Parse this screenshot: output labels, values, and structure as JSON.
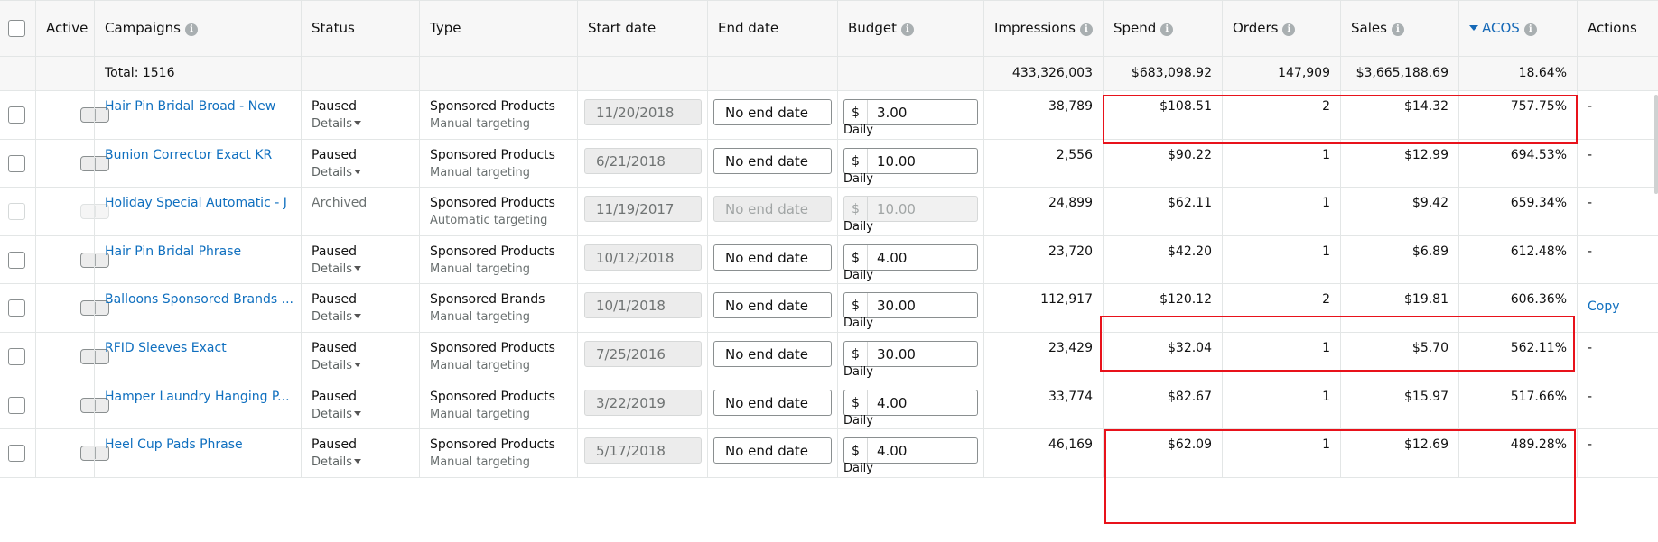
{
  "header": {
    "active": "Active",
    "campaigns": "Campaigns",
    "status": "Status",
    "type": "Type",
    "start_date": "Start date",
    "end_date": "End date",
    "budget": "Budget",
    "impressions": "Impressions",
    "spend": "Spend",
    "orders": "Orders",
    "sales": "Sales",
    "acos": "ACOS",
    "actions": "Actions",
    "info_glyph": "i"
  },
  "total": {
    "label": "Total: 1516",
    "impressions": "433,326,003",
    "spend": "$683,098.92",
    "orders": "147,909",
    "sales": "$3,665,188.69",
    "acos": "18.64%"
  },
  "rows": [
    {
      "name": "Hair Pin Bridal Broad - New",
      "status": "Paused",
      "details": "Details",
      "type": "Sponsored Products",
      "targeting": "Manual targeting",
      "start": "11/20/2018",
      "end": "No end date",
      "currency": "$",
      "budget": "3.00",
      "budget_period": "Daily",
      "impressions": "38,789",
      "spend": "$108.51",
      "orders": "2",
      "sales": "$14.32",
      "acos": "757.75%",
      "action": "-"
    },
    {
      "name": "Bunion Corrector Exact KR",
      "status": "Paused",
      "details": "Details",
      "type": "Sponsored Products",
      "targeting": "Manual targeting",
      "start": "6/21/2018",
      "end": "No end date",
      "currency": "$",
      "budget": "10.00",
      "budget_period": "Daily",
      "impressions": "2,556",
      "spend": "$90.22",
      "orders": "1",
      "sales": "$12.99",
      "acos": "694.53%",
      "action": "-"
    },
    {
      "name": "Holiday Special Automatic - J",
      "status": "Archived",
      "details": "",
      "type": "Sponsored Products",
      "targeting": "Automatic targeting",
      "start": "11/19/2017",
      "end": "No end date",
      "currency": "$",
      "budget": "10.00",
      "budget_period": "Daily",
      "impressions": "24,899",
      "spend": "$62.11",
      "orders": "1",
      "sales": "$9.42",
      "acos": "659.34%",
      "action": "-"
    },
    {
      "name": "Hair Pin Bridal Phrase",
      "status": "Paused",
      "details": "Details",
      "type": "Sponsored Products",
      "targeting": "Manual targeting",
      "start": "10/12/2018",
      "end": "No end date",
      "currency": "$",
      "budget": "4.00",
      "budget_period": "Daily",
      "impressions": "23,720",
      "spend": "$42.20",
      "orders": "1",
      "sales": "$6.89",
      "acos": "612.48%",
      "action": "-"
    },
    {
      "name": "Balloons Sponsored Brands ...",
      "status": "Paused",
      "details": "Details",
      "type": "Sponsored Brands",
      "targeting": "Manual targeting",
      "start": "10/1/2018",
      "end": "No end date",
      "currency": "$",
      "budget": "30.00",
      "budget_period": "Daily",
      "impressions": "112,917",
      "spend": "$120.12",
      "orders": "2",
      "sales": "$19.81",
      "acos": "606.36%",
      "action": "Copy"
    },
    {
      "name": "RFID Sleeves Exact",
      "status": "Paused",
      "details": "Details",
      "type": "Sponsored Products",
      "targeting": "Manual targeting",
      "start": "7/25/2016",
      "end": "No end date",
      "currency": "$",
      "budget": "30.00",
      "budget_period": "Daily",
      "impressions": "23,429",
      "spend": "$32.04",
      "orders": "1",
      "sales": "$5.70",
      "acos": "562.11%",
      "action": "-"
    },
    {
      "name": "Hamper Laundry Hanging P...",
      "status": "Paused",
      "details": "Details",
      "type": "Sponsored Products",
      "targeting": "Manual targeting",
      "start": "3/22/2019",
      "end": "No end date",
      "currency": "$",
      "budget": "4.00",
      "budget_period": "Daily",
      "impressions": "33,774",
      "spend": "$82.67",
      "orders": "1",
      "sales": "$15.97",
      "acos": "517.66%",
      "action": "-"
    },
    {
      "name": "Heel Cup Pads Phrase",
      "status": "Paused",
      "details": "Details",
      "type": "Sponsored Products",
      "targeting": "Manual targeting",
      "start": "5/17/2018",
      "end": "No end date",
      "currency": "$",
      "budget": "4.00",
      "budget_period": "Daily",
      "impressions": "46,169",
      "spend": "$62.09",
      "orders": "1",
      "sales": "$12.69",
      "acos": "489.28%",
      "action": "-"
    }
  ],
  "colors": {
    "link": "#0f6fbf",
    "highlight": "#e8121b",
    "header_bg": "#f7f7f7"
  }
}
